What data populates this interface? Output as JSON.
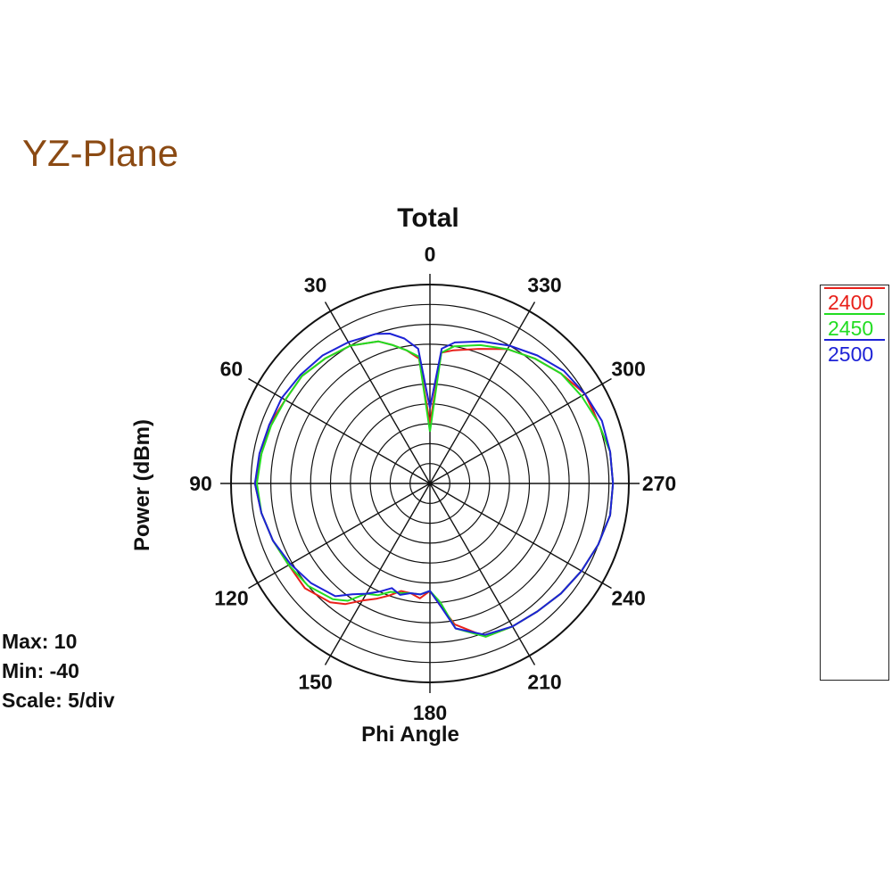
{
  "heading": "YZ-Plane",
  "scale_info": {
    "max_label": "Max: 10",
    "min_label": "Min: -40",
    "scale_label": "Scale: 5/div"
  },
  "colors": {
    "heading": "#8B4A13",
    "grid": "#111111",
    "series": [
      "#e8201a",
      "#22dd22",
      "#1d22d6"
    ]
  },
  "chart_data": {
    "type": "polar-line",
    "title": "Total",
    "xlabel": "Phi Angle",
    "ylabel": "Power (dBm)",
    "rlim": [
      -40,
      10
    ],
    "r_step": 5,
    "angle_direction": "counterclockwise",
    "angle_zero": "top",
    "angle_ticks": [
      0,
      30,
      60,
      90,
      120,
      150,
      180,
      210,
      240,
      270,
      300,
      330
    ],
    "grid": true,
    "legend_position": "right",
    "angles": [
      0,
      5,
      10,
      15,
      20,
      30,
      40,
      50,
      60,
      70,
      80,
      90,
      100,
      110,
      120,
      130,
      140,
      145,
      150,
      155,
      160,
      165,
      170,
      175,
      180,
      185,
      190,
      200,
      210,
      220,
      230,
      240,
      250,
      260,
      270,
      280,
      290,
      300,
      310,
      320,
      330,
      340,
      350,
      355
    ],
    "series": [
      {
        "name": "2400",
        "values": [
          -25,
          -8.5,
          -6,
          -4,
          -2,
          0,
          1,
          2,
          2,
          3,
          3,
          4,
          3,
          2,
          1,
          1,
          -1,
          -3,
          -6,
          -8,
          -10,
          -12,
          -12,
          -11,
          -13,
          -9,
          -4,
          1,
          1.5,
          2,
          3,
          4,
          5,
          6,
          6,
          6,
          5,
          5,
          3,
          1,
          -1,
          -4,
          -6,
          -7
        ]
      },
      {
        "name": "2450",
        "values": [
          -27,
          -8,
          -6,
          -4,
          -2,
          0,
          1,
          2,
          2,
          2.5,
          3,
          3.5,
          3,
          2,
          1,
          0,
          -2,
          -4,
          -8,
          -9,
          -11,
          -11.5,
          -12,
          -12,
          -13,
          -10,
          -3,
          1,
          1.5,
          2,
          3,
          4,
          5,
          6,
          6,
          6,
          5,
          4,
          3,
          1,
          -1,
          -3,
          -5,
          -7
        ]
      },
      {
        "name": "2500",
        "values": [
          -21,
          -6,
          -3,
          -1,
          0,
          1,
          2,
          2.5,
          3,
          3,
          3.5,
          4,
          3,
          2,
          0.5,
          -1,
          -3,
          -6,
          -8,
          -10,
          -12,
          -11,
          -12,
          -12,
          -13,
          -9,
          -3,
          0.5,
          1.5,
          2,
          3,
          4,
          5,
          6,
          6,
          6,
          6,
          5,
          4,
          2,
          0,
          -2,
          -4,
          -6
        ]
      }
    ]
  }
}
